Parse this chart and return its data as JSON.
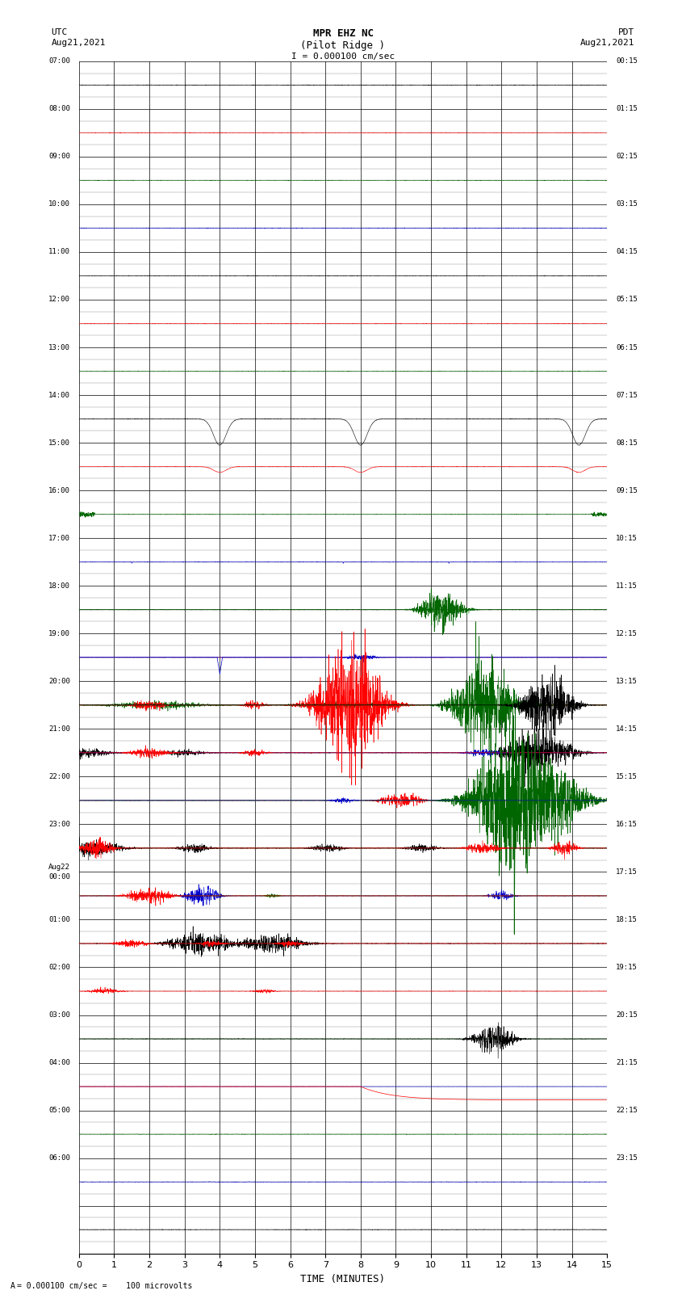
{
  "title_line1": "MPR EHZ NC",
  "title_line2": "(Pilot Ridge )",
  "scale_label": "I = 0.000100 cm/sec",
  "left_label_top": "UTC",
  "left_label_date": "Aug21,2021",
  "right_label_top": "PDT",
  "right_label_date": "Aug21,2021",
  "bottom_label": "TIME (MINUTES)",
  "bottom_note": "= 0.000100 cm/sec =    100 microvolts",
  "utc_times": [
    "07:00",
    "08:00",
    "09:00",
    "10:00",
    "11:00",
    "12:00",
    "13:00",
    "14:00",
    "15:00",
    "16:00",
    "17:00",
    "18:00",
    "19:00",
    "20:00",
    "21:00",
    "22:00",
    "23:00",
    "Aug22\n00:00",
    "01:00",
    "02:00",
    "03:00",
    "04:00",
    "05:00",
    "06:00",
    ""
  ],
  "pdt_times": [
    "00:15",
    "01:15",
    "02:15",
    "03:15",
    "04:15",
    "05:15",
    "06:15",
    "07:15",
    "08:15",
    "09:15",
    "10:15",
    "11:15",
    "12:15",
    "13:15",
    "14:15",
    "15:15",
    "16:15",
    "17:15",
    "18:15",
    "19:15",
    "20:15",
    "21:15",
    "22:15",
    "23:15",
    ""
  ],
  "num_rows": 25,
  "x_min": 0,
  "x_max": 15,
  "x_ticks": [
    0,
    1,
    2,
    3,
    4,
    5,
    6,
    7,
    8,
    9,
    10,
    11,
    12,
    13,
    14,
    15
  ],
  "bg_color": "#ffffff",
  "grid_major_color": "#000000",
  "grid_minor_color": "#888888",
  "trace_colors_cycle": [
    "#000000",
    "#ff0000",
    "#006600",
    "#0000cc"
  ]
}
